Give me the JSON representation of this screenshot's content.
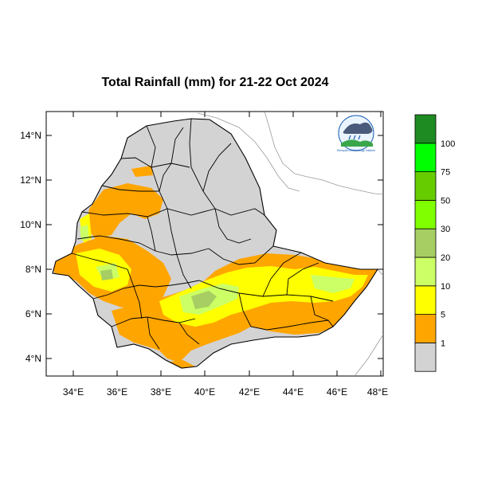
{
  "title": "Total Rainfall (mm) for 21-22 Oct 2024",
  "lat_labels": [
    "14°N",
    "12°N",
    "10°N",
    "8°N",
    "6°N",
    "4°N"
  ],
  "lon_labels": [
    "34°E",
    "36°E",
    "38°E",
    "40°E",
    "42°E",
    "44°E",
    "46°E",
    "48°E"
  ],
  "colorbar": {
    "labels": [
      "1",
      "5",
      "10",
      "20",
      "30",
      "50",
      "75",
      "100"
    ],
    "colors": [
      "#d3d3d3",
      "#ffa500",
      "#ffff00",
      "#ccff66",
      "#a6ce62",
      "#80ff00",
      "#66cc00",
      "#00ff00",
      "#1e8b22"
    ]
  },
  "logo": {
    "text": "Ethiopian Meteorology Institute"
  }
}
